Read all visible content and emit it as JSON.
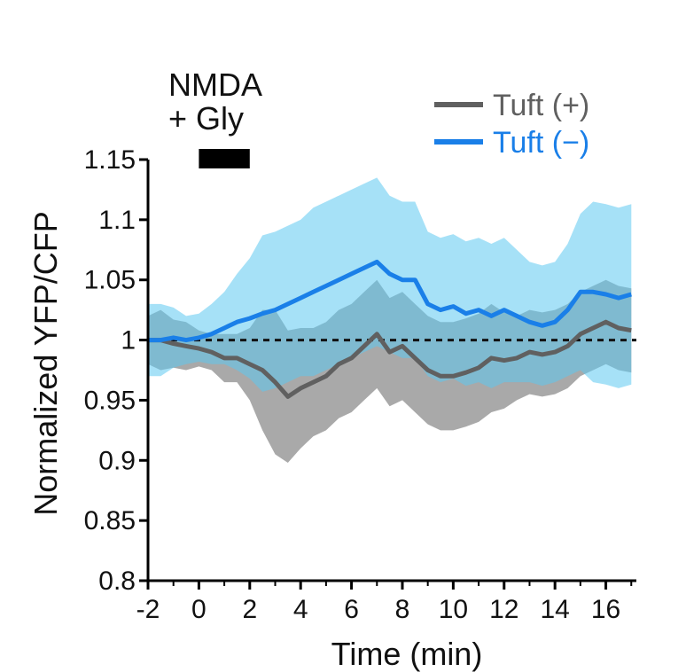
{
  "chart_data": {
    "type": "line",
    "title": "",
    "xlabel": "Time (min)",
    "ylabel": "Normalized YFP/CFP",
    "xlim": [
      -2,
      17.2
    ],
    "ylim": [
      0.8,
      1.15
    ],
    "xticks": [
      -2,
      0,
      2,
      4,
      6,
      8,
      10,
      12,
      14,
      16
    ],
    "yticks": [
      0.8,
      0.85,
      0.9,
      0.95,
      1,
      1.05,
      1.1,
      1.15
    ],
    "xtick_labels": [
      "-2",
      "0",
      "2",
      "4",
      "6",
      "8",
      "10",
      "12",
      "14",
      "16"
    ],
    "ytick_labels": [
      "0.8",
      "0.85",
      "0.9",
      "0.95",
      "1",
      "1.05",
      "1.1",
      "1.15"
    ],
    "grid": false,
    "reference_line": {
      "y": 1,
      "style": "dashed",
      "color": "#111111"
    },
    "stimulus": {
      "label_line1": "NMDA",
      "label_line2": "+ Gly",
      "start": 0,
      "end": 2
    },
    "legend": {
      "position": "top-right"
    },
    "series": [
      {
        "name": "Tuft (+)",
        "color": "#606060",
        "band_color": "#9a9a9a",
        "x": [
          -2,
          -1.5,
          -1,
          -0.5,
          0,
          0.5,
          1,
          1.5,
          2,
          2.5,
          3,
          3.5,
          4,
          4.5,
          5,
          5.5,
          6,
          6.5,
          7,
          7.5,
          8,
          8.5,
          9,
          9.5,
          10,
          10.5,
          11,
          11.5,
          12,
          12.5,
          13,
          13.5,
          14,
          14.5,
          15,
          15.5,
          16,
          16.5,
          17
        ],
        "y": [
          1.0,
          1.0,
          0.997,
          0.995,
          0.993,
          0.99,
          0.985,
          0.985,
          0.98,
          0.975,
          0.965,
          0.953,
          0.96,
          0.965,
          0.97,
          0.98,
          0.985,
          0.995,
          1.005,
          0.99,
          0.995,
          0.985,
          0.975,
          0.97,
          0.97,
          0.973,
          0.977,
          0.985,
          0.983,
          0.985,
          0.99,
          0.988,
          0.99,
          0.995,
          1.005,
          1.01,
          1.015,
          1.01,
          1.008
        ],
        "err": [
          0.02,
          0.025,
          0.02,
          0.02,
          0.015,
          0.015,
          0.02,
          0.02,
          0.03,
          0.05,
          0.06,
          0.055,
          0.05,
          0.045,
          0.045,
          0.045,
          0.045,
          0.045,
          0.045,
          0.045,
          0.045,
          0.045,
          0.045,
          0.045,
          0.045,
          0.045,
          0.045,
          0.045,
          0.04,
          0.035,
          0.035,
          0.035,
          0.035,
          0.035,
          0.035,
          0.035,
          0.035,
          0.035,
          0.035
        ]
      },
      {
        "name": "Tuft (−)",
        "color": "#1a7fe8",
        "band_color": "#5cc8f0",
        "x": [
          -2,
          -1.5,
          -1,
          -0.5,
          0,
          0.5,
          1,
          1.5,
          2,
          2.5,
          3,
          3.5,
          4,
          4.5,
          5,
          5.5,
          6,
          6.5,
          7,
          7.5,
          8,
          8.5,
          9,
          9.5,
          10,
          10.5,
          11,
          11.5,
          12,
          12.5,
          13,
          13.5,
          14,
          14.5,
          15,
          15.5,
          16,
          16.5,
          17
        ],
        "y": [
          1.0,
          1.0,
          1.002,
          1.0,
          1.002,
          1.005,
          1.01,
          1.015,
          1.018,
          1.022,
          1.025,
          1.03,
          1.035,
          1.04,
          1.045,
          1.05,
          1.055,
          1.06,
          1.065,
          1.055,
          1.05,
          1.05,
          1.03,
          1.025,
          1.028,
          1.022,
          1.025,
          1.02,
          1.025,
          1.02,
          1.015,
          1.012,
          1.015,
          1.025,
          1.04,
          1.04,
          1.038,
          1.035,
          1.038
        ],
        "err": [
          0.03,
          0.03,
          0.025,
          0.02,
          0.02,
          0.025,
          0.03,
          0.04,
          0.05,
          0.065,
          0.065,
          0.065,
          0.065,
          0.07,
          0.07,
          0.07,
          0.07,
          0.07,
          0.07,
          0.065,
          0.065,
          0.065,
          0.06,
          0.06,
          0.06,
          0.06,
          0.06,
          0.06,
          0.06,
          0.055,
          0.05,
          0.05,
          0.05,
          0.055,
          0.065,
          0.075,
          0.075,
          0.075,
          0.075
        ]
      }
    ]
  }
}
